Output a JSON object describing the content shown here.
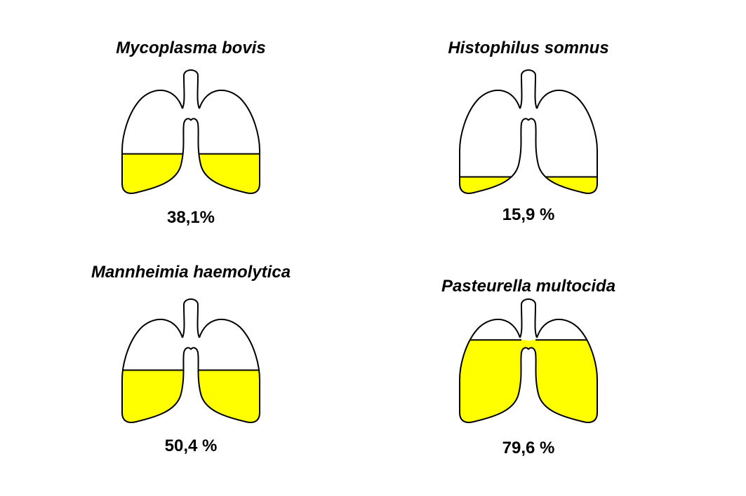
{
  "fill_color": "#ffff00",
  "outline_color": "#000000",
  "panels": [
    {
      "name": "Mycoplasma bovis",
      "percent_label": "38,1%",
      "fill_fraction": 0.381
    },
    {
      "name": "Histophilus somnus",
      "percent_label": "15,9 %",
      "fill_fraction": 0.159
    },
    {
      "name": "Mannheimia haemolytica",
      "percent_label": "50,4 %",
      "fill_fraction": 0.504
    },
    {
      "name": "Pasteurella multocida",
      "percent_label": "79,6 %",
      "fill_fraction": 0.796
    }
  ]
}
